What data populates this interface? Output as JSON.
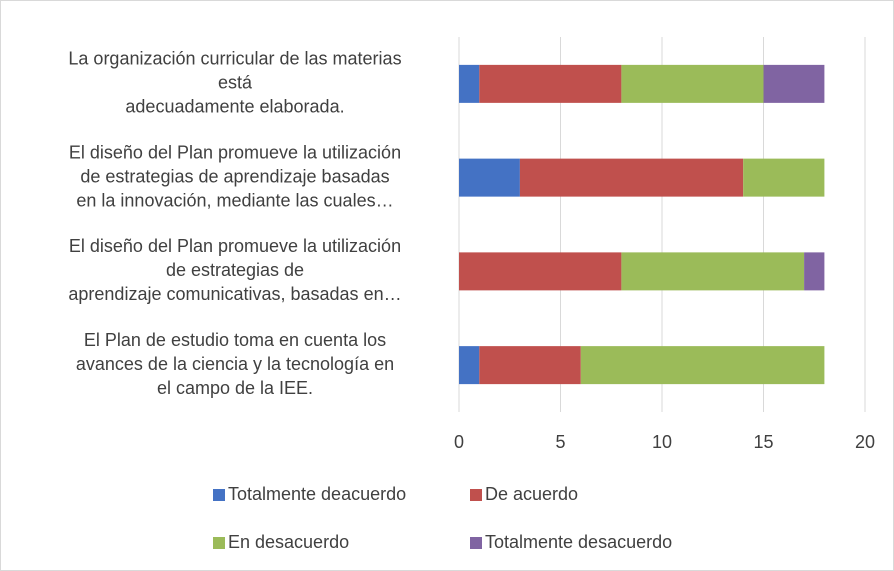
{
  "chart_data": {
    "type": "stacked_barh",
    "categories": [
      [
        "La organización curricular de las materias",
        "está",
        "adecuadamente  elaborada."
      ],
      [
        "El diseño del Plan promueve la utilización",
        "de estrategias de    aprendizaje basadas",
        "en la innovación, mediante las cuales…"
      ],
      [
        "El diseño del Plan promueve la utilización",
        "de estrategias de",
        "aprendizaje comunicativas, basadas en…"
      ],
      [
        "El Plan de estudio toma en cuenta los",
        "avances de la ciencia y   la tecnología en",
        "el campo de la IEE."
      ]
    ],
    "series": [
      {
        "name": "Totalmente deacuerdo",
        "color": "#4472c4",
        "values": [
          1,
          3,
          0,
          1
        ]
      },
      {
        "name": "De acuerdo",
        "color": "#c0504d",
        "values": [
          7,
          11,
          8,
          5
        ]
      },
      {
        "name": "En desacuerdo",
        "color": "#9bbb59",
        "values": [
          7,
          4,
          9,
          12
        ]
      },
      {
        "name": "Totalmente desacuerdo",
        "color": "#8064a2",
        "values": [
          3,
          0,
          1,
          0
        ]
      }
    ],
    "xlim": [
      0,
      20
    ],
    "xticks": [
      0,
      5,
      10,
      15,
      20
    ],
    "grid": true
  }
}
